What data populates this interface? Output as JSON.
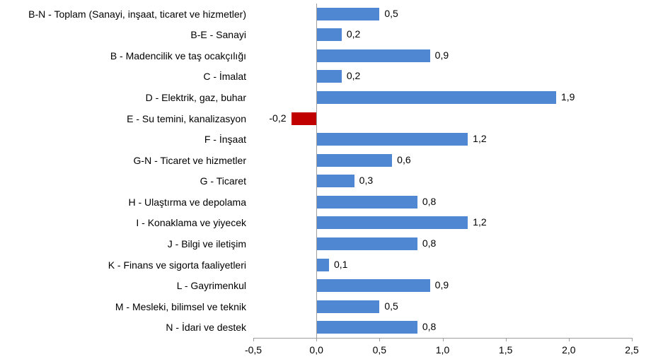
{
  "chart_data": {
    "type": "bar",
    "orientation": "horizontal",
    "title": "",
    "xlabel": "",
    "ylabel": "",
    "legend": false,
    "grid": false,
    "xlim": [
      -0.5,
      2.5
    ],
    "x_ticks": [
      {
        "value": -0.5,
        "label": "-0,5"
      },
      {
        "value": 0.0,
        "label": "0,0"
      },
      {
        "value": 0.5,
        "label": "0,5"
      },
      {
        "value": 1.0,
        "label": "1,0"
      },
      {
        "value": 1.5,
        "label": "1,5"
      },
      {
        "value": 2.0,
        "label": "2,0"
      },
      {
        "value": 2.5,
        "label": "2,5"
      }
    ],
    "categories": [
      "B-N - Toplam (Sanayi, inşaat, ticaret ve hizmetler)",
      "B-E - Sanayi",
      "B - Madencilik ve taş ocakçılığı",
      "C - İmalat",
      "D - Elektrik, gaz, buhar",
      "E - Su temini, kanalizasyon",
      "F - İnşaat",
      "G-N - Ticaret ve hizmetler",
      "G - Ticaret",
      "H - Ulaştırma ve depolama",
      "I - Konaklama ve yiyecek",
      "J - Bilgi ve iletişim",
      "K - Finans ve sigorta faaliyetleri",
      "L - Gayrimenkul",
      "M - Mesleki, bilimsel ve teknik",
      "N - İdari ve destek"
    ],
    "values": [
      0.5,
      0.2,
      0.9,
      0.2,
      1.9,
      -0.2,
      1.2,
      0.6,
      0.3,
      0.8,
      1.2,
      0.8,
      0.1,
      0.9,
      0.5,
      0.8
    ],
    "value_labels": [
      "0,5",
      "0,2",
      "0,9",
      "0,2",
      "1,9",
      "-0,2",
      "1,2",
      "0,6",
      "0,3",
      "0,8",
      "1,2",
      "0,8",
      "0,1",
      "0,9",
      "0,5",
      "0,8"
    ],
    "colors": {
      "positive_bar": "#4f87d2",
      "negative_bar": "#c00000",
      "axis": "#9e9e9e",
      "text": "#000000",
      "background": "#ffffff"
    }
  }
}
